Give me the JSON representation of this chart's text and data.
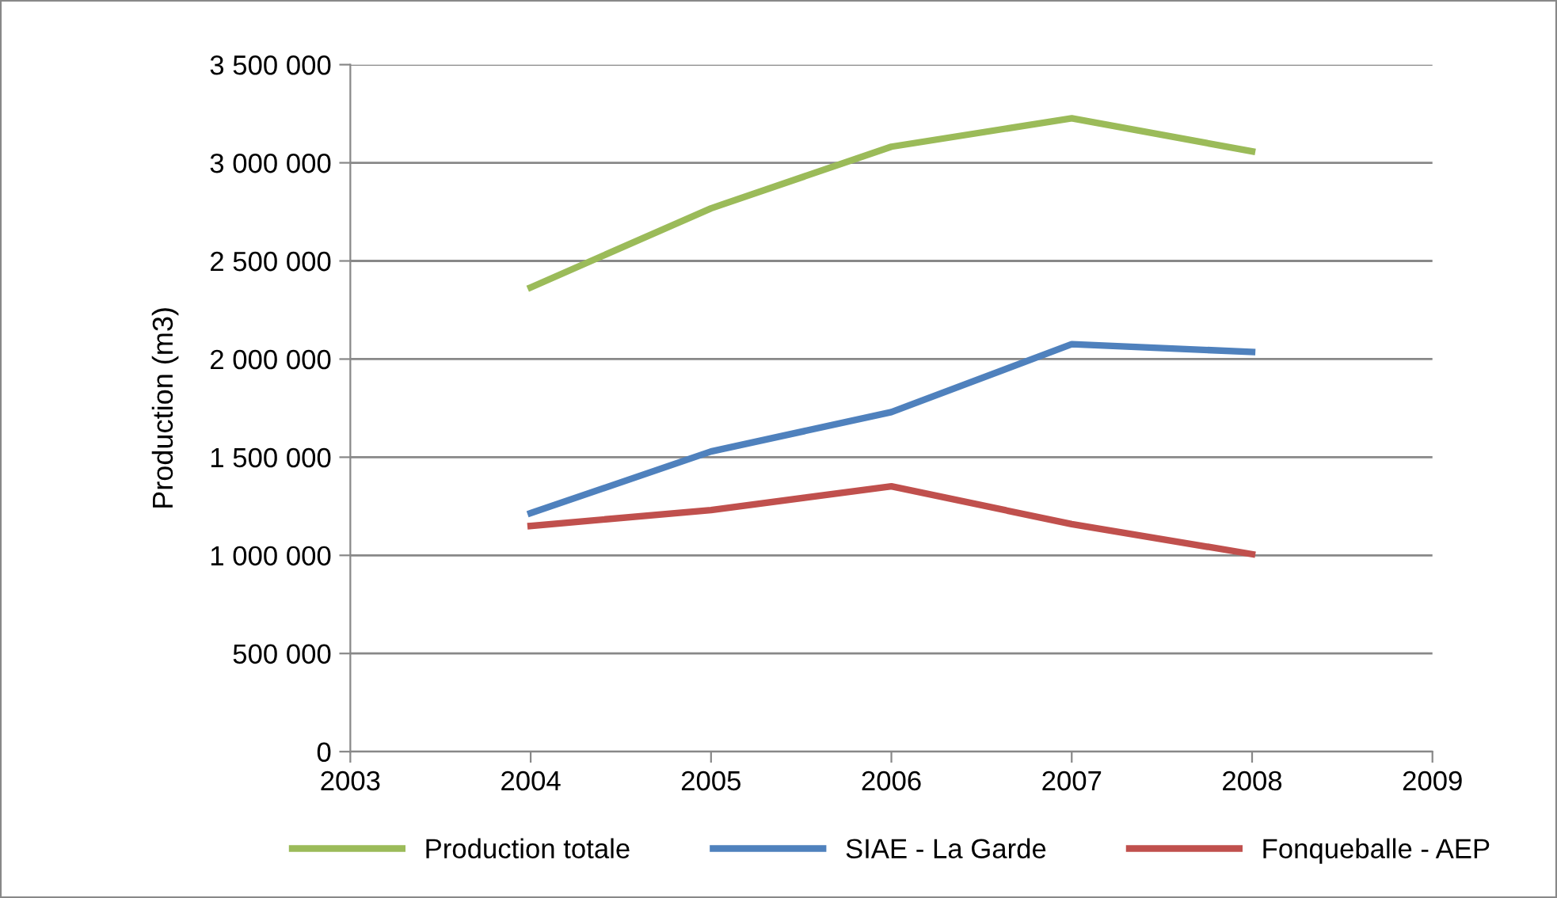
{
  "chart_data": {
    "type": "line",
    "ylabel": "Production (m3)",
    "x": [
      2004,
      2005,
      2006,
      2007,
      2008
    ],
    "series": [
      {
        "name": "Production totale",
        "color": "#9bbb59",
        "values": [
          2365000,
          2768000,
          3082000,
          3227000,
          3058000
        ]
      },
      {
        "name": "SIAE - La Garde",
        "color": "#4f81bd",
        "values": [
          1215000,
          1529000,
          1730000,
          2076000,
          2036000
        ]
      },
      {
        "name": "Fonqueballe - AEP",
        "color": "#c0504d",
        "values": [
          1150000,
          1231000,
          1352000,
          1159000,
          1006000
        ]
      }
    ],
    "xlim": [
      2003,
      2009
    ],
    "xticks": [
      2003,
      2004,
      2005,
      2006,
      2007,
      2008,
      2009
    ],
    "ylim": [
      0,
      3500000
    ],
    "yticks": [
      {
        "value": 0,
        "label": "0"
      },
      {
        "value": 500000,
        "label": "500 000"
      },
      {
        "value": 1000000,
        "label": "1 000 000"
      },
      {
        "value": 1500000,
        "label": "1 500 000"
      },
      {
        "value": 2000000,
        "label": "2 000 000"
      },
      {
        "value": 2500000,
        "label": "2 500 000"
      },
      {
        "value": 3000000,
        "label": "3 000 000"
      },
      {
        "value": 3500000,
        "label": "3 500 000"
      }
    ],
    "grid": "y",
    "legend": "bottom",
    "marker": "none",
    "line_style": "solid"
  }
}
